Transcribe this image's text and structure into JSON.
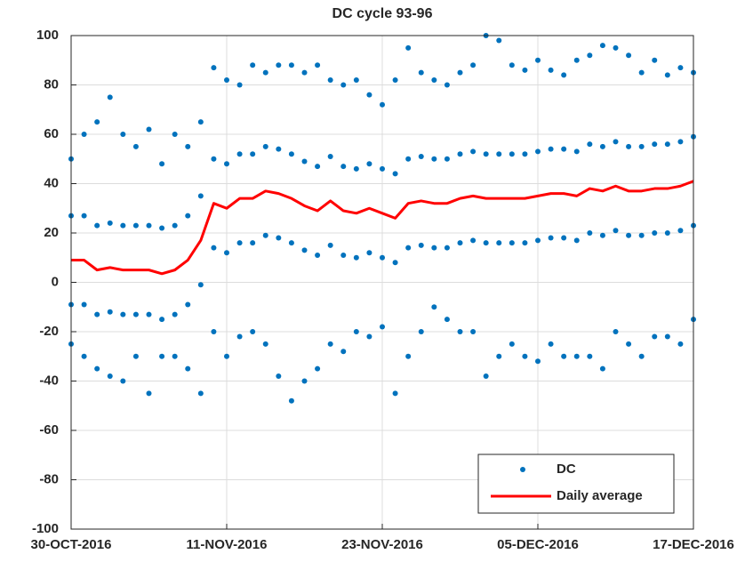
{
  "chart_data": {
    "type": "scatter",
    "title": "DC cycle 93-96",
    "xlim": [
      "2016-10-30",
      "2016-12-17"
    ],
    "xticks": [
      {
        "value": "2016-10-30",
        "label": "30-OCT-2016"
      },
      {
        "value": "2016-11-11",
        "label": "11-NOV-2016"
      },
      {
        "value": "2016-11-23",
        "label": "23-NOV-2016"
      },
      {
        "value": "2016-12-05",
        "label": "05-DEC-2016"
      },
      {
        "value": "2016-12-17",
        "label": "17-DEC-2016"
      }
    ],
    "ylim": [
      -100,
      100
    ],
    "yticks": [
      -100,
      -80,
      -60,
      -40,
      -20,
      0,
      20,
      40,
      60,
      80,
      100
    ],
    "grid": true,
    "legend": "lower right",
    "series": [
      {
        "name": "DC",
        "type": "scatter",
        "color": "#0072bd",
        "x": [
          "2016-10-30",
          "2016-10-30",
          "2016-10-30",
          "2016-10-30",
          "2016-10-31",
          "2016-10-31",
          "2016-10-31",
          "2016-10-31",
          "2016-11-01",
          "2016-11-01",
          "2016-11-01",
          "2016-11-01",
          "2016-11-02",
          "2016-11-02",
          "2016-11-02",
          "2016-11-02",
          "2016-11-03",
          "2016-11-03",
          "2016-11-03",
          "2016-11-03",
          "2016-11-04",
          "2016-11-04",
          "2016-11-04",
          "2016-11-04",
          "2016-11-05",
          "2016-11-05",
          "2016-11-05",
          "2016-11-05",
          "2016-11-06",
          "2016-11-06",
          "2016-11-06",
          "2016-11-06",
          "2016-11-07",
          "2016-11-07",
          "2016-11-07",
          "2016-11-07",
          "2016-11-08",
          "2016-11-08",
          "2016-11-08",
          "2016-11-08",
          "2016-11-09",
          "2016-11-09",
          "2016-11-09",
          "2016-11-09",
          "2016-11-10",
          "2016-11-10",
          "2016-11-10",
          "2016-11-10",
          "2016-11-11",
          "2016-11-11",
          "2016-11-11",
          "2016-11-11",
          "2016-11-12",
          "2016-11-12",
          "2016-11-12",
          "2016-11-12",
          "2016-11-13",
          "2016-11-13",
          "2016-11-13",
          "2016-11-13",
          "2016-11-14",
          "2016-11-14",
          "2016-11-14",
          "2016-11-14",
          "2016-11-15",
          "2016-11-15",
          "2016-11-15",
          "2016-11-15",
          "2016-11-16",
          "2016-11-16",
          "2016-11-16",
          "2016-11-16",
          "2016-11-17",
          "2016-11-17",
          "2016-11-17",
          "2016-11-17",
          "2016-11-18",
          "2016-11-18",
          "2016-11-18",
          "2016-11-18",
          "2016-11-19",
          "2016-11-19",
          "2016-11-19",
          "2016-11-19",
          "2016-11-20",
          "2016-11-20",
          "2016-11-20",
          "2016-11-20",
          "2016-11-21",
          "2016-11-21",
          "2016-11-21",
          "2016-11-21",
          "2016-11-22",
          "2016-11-22",
          "2016-11-22",
          "2016-11-22",
          "2016-11-23",
          "2016-11-23",
          "2016-11-23",
          "2016-11-23",
          "2016-11-24",
          "2016-11-24",
          "2016-11-24",
          "2016-11-24",
          "2016-11-25",
          "2016-11-25",
          "2016-11-25",
          "2016-11-25",
          "2016-11-26",
          "2016-11-26",
          "2016-11-26",
          "2016-11-26",
          "2016-11-27",
          "2016-11-27",
          "2016-11-27",
          "2016-11-27",
          "2016-11-28",
          "2016-11-28",
          "2016-11-28",
          "2016-11-28",
          "2016-11-29",
          "2016-11-29",
          "2016-11-29",
          "2016-11-29",
          "2016-11-30",
          "2016-11-30",
          "2016-11-30",
          "2016-11-30",
          "2016-12-01",
          "2016-12-01",
          "2016-12-01",
          "2016-12-01",
          "2016-12-02",
          "2016-12-02",
          "2016-12-02",
          "2016-12-02",
          "2016-12-03",
          "2016-12-03",
          "2016-12-03",
          "2016-12-03",
          "2016-12-04",
          "2016-12-04",
          "2016-12-04",
          "2016-12-04",
          "2016-12-05",
          "2016-12-05",
          "2016-12-05",
          "2016-12-05",
          "2016-12-06",
          "2016-12-06",
          "2016-12-06",
          "2016-12-06",
          "2016-12-07",
          "2016-12-07",
          "2016-12-07",
          "2016-12-07",
          "2016-12-08",
          "2016-12-08",
          "2016-12-08",
          "2016-12-08",
          "2016-12-09",
          "2016-12-09",
          "2016-12-09",
          "2016-12-09",
          "2016-12-10",
          "2016-12-10",
          "2016-12-10",
          "2016-12-10",
          "2016-12-11",
          "2016-12-11",
          "2016-12-11",
          "2016-12-11",
          "2016-12-12",
          "2016-12-12",
          "2016-12-12",
          "2016-12-12",
          "2016-12-13",
          "2016-12-13",
          "2016-12-13",
          "2016-12-13",
          "2016-12-14",
          "2016-12-14",
          "2016-12-14",
          "2016-12-14",
          "2016-12-15",
          "2016-12-15",
          "2016-12-15",
          "2016-12-15",
          "2016-12-16",
          "2016-12-16",
          "2016-12-16",
          "2016-12-16",
          "2016-12-17",
          "2016-12-17",
          "2016-12-17",
          "2016-12-17"
        ],
        "values": [
          50,
          27,
          -9,
          -25,
          60,
          27,
          -9,
          -30,
          65,
          23,
          -13,
          -35,
          75,
          24,
          -12,
          -38,
          60,
          23,
          -13,
          -40,
          55,
          23,
          -13,
          -30,
          62,
          23,
          -13,
          -45,
          48,
          22,
          -15,
          -30,
          60,
          23,
          -13,
          -30,
          55,
          27,
          -9,
          -35,
          65,
          35,
          -1,
          -45,
          87,
          50,
          14,
          -20,
          82,
          48,
          12,
          -30,
          80,
          52,
          16,
          -22,
          88,
          52,
          16,
          -20,
          85,
          55,
          19,
          -25,
          88,
          54,
          18,
          -38,
          88,
          52,
          16,
          -48,
          85,
          49,
          13,
          -40,
          88,
          47,
          11,
          -35,
          82,
          51,
          15,
          -25,
          80,
          47,
          11,
          -28,
          82,
          46,
          10,
          -20,
          76,
          48,
          12,
          -22,
          72,
          46,
          10,
          -18,
          82,
          44,
          8,
          -45,
          95,
          50,
          14,
          -30,
          85,
          51,
          15,
          -20,
          82,
          50,
          14,
          -10,
          80,
          50,
          14,
          -15,
          85,
          52,
          16,
          -20,
          88,
          53,
          17,
          -20,
          100,
          52,
          16,
          -38,
          98,
          52,
          16,
          -30,
          88,
          52,
          16,
          -25,
          86,
          52,
          16,
          -30,
          90,
          53,
          17,
          -32,
          86,
          54,
          18,
          -25,
          84,
          54,
          18,
          -30,
          90,
          53,
          17,
          -30,
          92,
          56,
          20,
          -30,
          96,
          55,
          19,
          -35,
          95,
          57,
          21,
          -20,
          92,
          55,
          19,
          -25,
          85,
          55,
          19,
          -30,
          90,
          56,
          20,
          -22,
          84,
          56,
          20,
          -22,
          87,
          57,
          21,
          -25,
          85,
          59,
          23,
          -15
        ]
      },
      {
        "name": "Daily average",
        "type": "line",
        "color": "#ff0000",
        "x": [
          "2016-10-30",
          "2016-10-31",
          "2016-11-01",
          "2016-11-02",
          "2016-11-03",
          "2016-11-04",
          "2016-11-05",
          "2016-11-06",
          "2016-11-07",
          "2016-11-08",
          "2016-11-09",
          "2016-11-10",
          "2016-11-11",
          "2016-11-12",
          "2016-11-13",
          "2016-11-14",
          "2016-11-15",
          "2016-11-16",
          "2016-11-17",
          "2016-11-18",
          "2016-11-19",
          "2016-11-20",
          "2016-11-21",
          "2016-11-22",
          "2016-11-23",
          "2016-11-24",
          "2016-11-25",
          "2016-11-26",
          "2016-11-27",
          "2016-11-28",
          "2016-11-29",
          "2016-11-30",
          "2016-12-01",
          "2016-12-02",
          "2016-12-03",
          "2016-12-04",
          "2016-12-05",
          "2016-12-06",
          "2016-12-07",
          "2016-12-08",
          "2016-12-09",
          "2016-12-10",
          "2016-12-11",
          "2016-12-12",
          "2016-12-13",
          "2016-12-14",
          "2016-12-15",
          "2016-12-16",
          "2016-12-17"
        ],
        "values": [
          9,
          9,
          5,
          6,
          5,
          5,
          5,
          3.5,
          5,
          9,
          17,
          32,
          30,
          34,
          34,
          37,
          36,
          34,
          31,
          29,
          33,
          29,
          28,
          30,
          28,
          26,
          32,
          33,
          32,
          32,
          34,
          35,
          34,
          34,
          34,
          34,
          35,
          36,
          36,
          35,
          38,
          37,
          39,
          37,
          37,
          38,
          38,
          39,
          41
        ]
      }
    ]
  }
}
